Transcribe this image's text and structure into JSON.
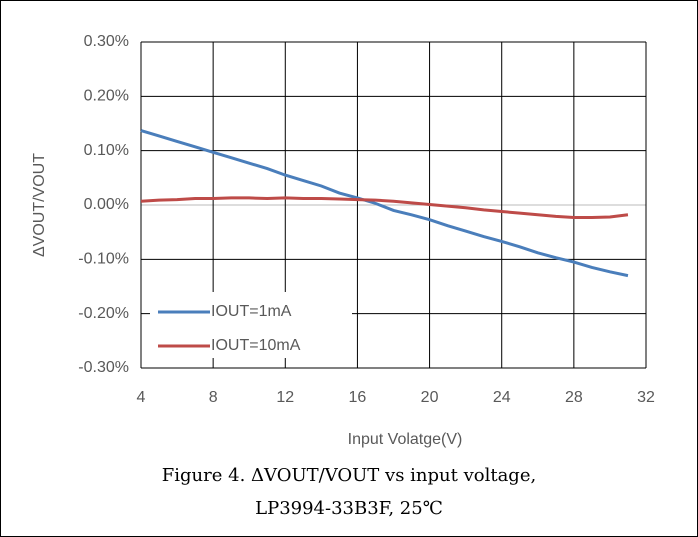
{
  "chart_data": {
    "type": "line",
    "x_label": "Input Volatge(V)",
    "y_label": "ΔVOUT/VOUT",
    "caption": [
      "Figure 4. ΔVOUT/VOUT vs input voltage,",
      "LP3994-33B3F, 25℃"
    ],
    "x": [
      4,
      5,
      6,
      7,
      8,
      9,
      10,
      11,
      12,
      13,
      14,
      15,
      16,
      17,
      18,
      19,
      20,
      21,
      22,
      23,
      24,
      25,
      26,
      27,
      28,
      29,
      30,
      31
    ],
    "series": [
      {
        "name": "IOUT=1mA",
        "color": "#4a7ebb",
        "values": [
          0.137,
          0.127,
          0.117,
          0.107,
          0.097,
          0.087,
          0.077,
          0.067,
          0.055,
          0.045,
          0.035,
          0.022,
          0.013,
          0.003,
          -0.01,
          -0.018,
          -0.027,
          -0.038,
          -0.048,
          -0.058,
          -0.067,
          -0.077,
          -0.088,
          -0.097,
          -0.105,
          -0.115,
          -0.123,
          -0.13
        ]
      },
      {
        "name": "IOUT=10mA",
        "color": "#be4b48",
        "values": [
          0.007,
          0.009,
          0.01,
          0.012,
          0.012,
          0.013,
          0.013,
          0.012,
          0.013,
          0.012,
          0.012,
          0.011,
          0.01,
          0.009,
          0.007,
          0.004,
          0.001,
          -0.002,
          -0.005,
          -0.009,
          -0.012,
          -0.015,
          -0.018,
          -0.021,
          -0.023,
          -0.023,
          -0.022,
          -0.018
        ]
      }
    ],
    "xlim": [
      4,
      32
    ],
    "xticks": [
      4,
      8,
      12,
      16,
      20,
      24,
      28,
      32
    ],
    "ylim": [
      -0.3,
      0.3
    ],
    "yticks": [
      {
        "value": -0.3,
        "label": "-0.30%"
      },
      {
        "value": -0.2,
        "label": "-0.20%"
      },
      {
        "value": -0.1,
        "label": "-0.10%"
      },
      {
        "value": 0,
        "label": "0.00%"
      },
      {
        "value": 0.1,
        "label": "0.10%"
      },
      {
        "value": 0.2,
        "label": "0.20%"
      },
      {
        "value": 0.3,
        "label": "0.30%"
      }
    ],
    "grid": true,
    "legend": "lower left"
  }
}
